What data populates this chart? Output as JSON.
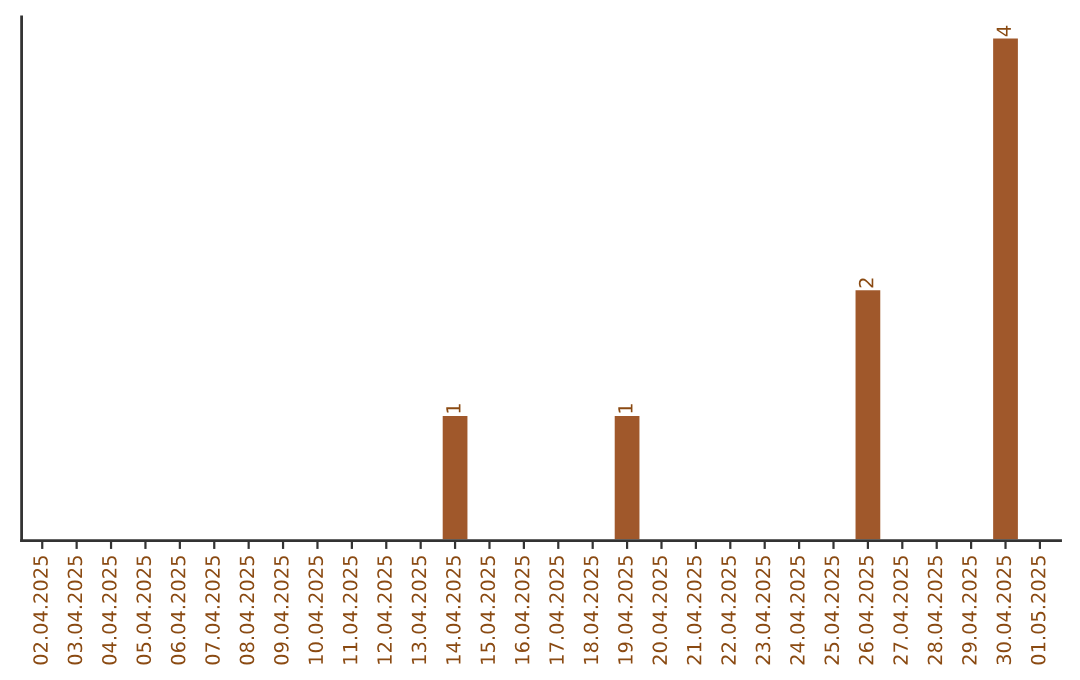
{
  "chart_data": {
    "type": "bar",
    "categories": [
      "02.04.2025",
      "03.04.2025",
      "04.04.2025",
      "05.04.2025",
      "06.04.2025",
      "07.04.2025",
      "08.04.2025",
      "09.04.2025",
      "10.04.2025",
      "11.04.2025",
      "12.04.2025",
      "13.04.2025",
      "14.04.2025",
      "15.04.2025",
      "16.04.2025",
      "17.04.2025",
      "18.04.2025",
      "19.04.2025",
      "20.04.2025",
      "21.04.2025",
      "22.04.2025",
      "23.04.2025",
      "24.04.2025",
      "25.04.2025",
      "26.04.2025",
      "27.04.2025",
      "28.04.2025",
      "29.04.2025",
      "30.04.2025",
      "01.05.2025"
    ],
    "values": [
      null,
      null,
      null,
      null,
      null,
      null,
      null,
      null,
      null,
      null,
      null,
      null,
      1,
      null,
      null,
      null,
      null,
      1,
      null,
      null,
      null,
      null,
      null,
      null,
      2,
      null,
      null,
      null,
      4,
      null
    ],
    "value_labels": [
      null,
      null,
      null,
      null,
      null,
      null,
      null,
      null,
      null,
      null,
      null,
      null,
      "1",
      null,
      null,
      null,
      null,
      "1",
      null,
      null,
      null,
      null,
      null,
      null,
      "2",
      null,
      null,
      null,
      "4",
      null
    ],
    "color": "#a0582b",
    "tick_labels": "x",
    "grid": false,
    "legend": false
  }
}
